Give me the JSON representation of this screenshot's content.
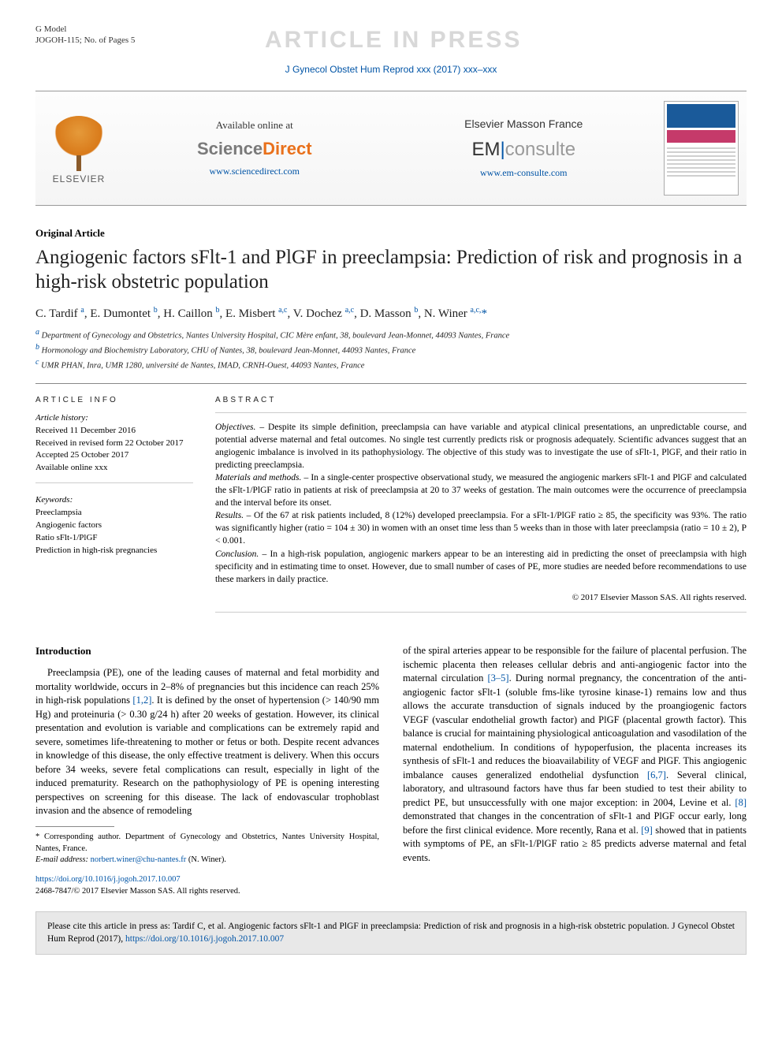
{
  "header": {
    "gmodel": "G Model",
    "gmodel_id": "JOGOH-115; No. of Pages 5",
    "watermark": "ARTICLE IN PRESS",
    "journal_line": "J Gynecol Obstet Hum Reprod xxx (2017) xxx–xxx"
  },
  "panel": {
    "elsevier": "ELSEVIER",
    "sd_avail": "Available online at",
    "sd_sci": "Science",
    "sd_dir": "Direct",
    "sd_url": "www.sciencedirect.com",
    "em_title": "Elsevier Masson France",
    "em_em": "EM",
    "em_con": "consulte",
    "em_url": "www.em-consulte.com"
  },
  "article": {
    "type": "Original Article",
    "title": "Angiogenic factors sFlt-1 and PlGF in preeclampsia: Prediction of risk and prognosis in a high-risk obstetric population",
    "authors_html": "C. Tardif <sup>a</sup>, E. Dumontet <sup>b</sup>, H. Caillon <sup>b</sup>, E. Misbert <sup>a,c</sup>, V. Dochez <sup>a,c</sup>, D. Masson <sup>b</sup>, N. Winer <sup>a,c,</sup><span class='ast'>*</span>",
    "affils": [
      "Department of Gynecology and Obstetrics, Nantes University Hospital, CIC Mère enfant, 38, boulevard Jean-Monnet, 44093 Nantes, France",
      "Hormonology and Biochemistry Laboratory, CHU of Nantes, 38, boulevard Jean-Monnet, 44093 Nantes, France",
      "UMR PHAN, Inra, UMR 1280, université de Nantes, IMAD, CRNH-Ouest, 44093 Nantes, France"
    ],
    "affil_sups": [
      "a",
      "b",
      "c"
    ]
  },
  "info": {
    "head": "ARTICLE INFO",
    "history_label": "Article history:",
    "received": "Received 11 December 2016",
    "revised": "Received in revised form 22 October 2017",
    "accepted": "Accepted 25 October 2017",
    "online": "Available online xxx",
    "kw_label": "Keywords:",
    "keywords": [
      "Preeclampsia",
      "Angiogenic factors",
      "Ratio sFlt-1/PlGF",
      "Prediction in high-risk pregnancies"
    ]
  },
  "abstract": {
    "head": "ABSTRACT",
    "objectives_label": "Objectives. –",
    "objectives": " Despite its simple definition, preeclampsia can have variable and atypical clinical presentations, an unpredictable course, and potential adverse maternal and fetal outcomes. No single test currently predicts risk or prognosis adequately. Scientific advances suggest that an angiogenic imbalance is involved in its pathophysiology. The objective of this study was to investigate the use of sFlt-1, PlGF, and their ratio in predicting preeclampsia.",
    "methods_label": "Materials and methods. –",
    "methods": " In a single-center prospective observational study, we measured the angiogenic markers sFlt-1 and PlGF and calculated the sFlt-1/PlGF ratio in patients at risk of preeclampsia at 20 to 37 weeks of gestation. The main outcomes were the occurrence of preeclampsia and the interval before its onset.",
    "results_label": "Results. –",
    "results": " Of the 67 at risk patients included, 8 (12%) developed preeclampsia. For a sFlt-1/PlGF ratio ≥ 85, the specificity was 93%. The ratio was significantly higher (ratio = 104 ± 30) in women with an onset time less than 5 weeks than in those with later preeclampsia (ratio = 10 ± 2), P < 0.001.",
    "conclusion_label": "Conclusion. –",
    "conclusion": " In a high-risk population, angiogenic markers appear to be an interesting aid in predicting the onset of preeclampsia with high specificity and in estimating time to onset. However, due to small number of cases of PE, more studies are needed before recommendations to use these markers in daily practice.",
    "copyright": "© 2017 Elsevier Masson SAS. All rights reserved."
  },
  "body": {
    "intro_head": "Introduction",
    "col1": "Preeclampsia (PE), one of the leading causes of maternal and fetal morbidity and mortality worldwide, occurs in 2–8% of pregnancies but this incidence can reach 25% in high-risk populations [1,2]. It is defined by the onset of hypertension (> 140/90 mm Hg) and proteinuria (> 0.30 g/24 h) after 20 weeks of gestation. However, its clinical presentation and evolution is variable and complications can be extremely rapid and severe, sometimes life-threatening to mother or fetus or both. Despite recent advances in knowledge of this disease, the only effective treatment is delivery. When this occurs before 34 weeks, severe fetal complications can result, especially in light of the induced prematurity. Research on the pathophysiology of PE is opening interesting perspectives on screening for this disease. The lack of endovascular trophoblast invasion and the absence of remodeling",
    "col1_refs": {
      "r12": "[1,2]"
    },
    "col2": "of the spiral arteries appear to be responsible for the failure of placental perfusion. The ischemic placenta then releases cellular debris and anti-angiogenic factor into the maternal circulation [3–5]. During normal pregnancy, the concentration of the anti-angiogenic factor sFlt-1 (soluble fms-like tyrosine kinase-1) remains low and thus allows the accurate transduction of signals induced by the proangiogenic factors VEGF (vascular endothelial growth factor) and PlGF (placental growth factor). This balance is crucial for maintaining physiological anticoagulation and vasodilation of the maternal endothelium. In conditions of hypoperfusion, the placenta increases its synthesis of sFlt-1 and reduces the bioavailability of VEGF and PlGF. This angiogenic imbalance causes generalized endothelial dysfunction [6,7]. Several clinical, laboratory, and ultrasound factors have thus far been studied to test their ability to predict PE, but unsuccessfully with one major exception: in 2004, Levine et al. [8] demonstrated that changes in the concentration of sFlt-1 and PlGF occur early, long before the first clinical evidence. More recently, Rana et al. [9] showed that in patients with symptoms of PE, an sFlt-1/PlGF ratio ≥ 85 predicts adverse maternal and fetal events."
  },
  "footnotes": {
    "corr": "* Corresponding author. Department of Gynecology and Obstetrics, Nantes University Hospital, Nantes, France.",
    "email_label": "E-mail address:",
    "email": "norbert.winer@chu-nantes.fr",
    "email_tail": " (N. Winer).",
    "doi_url": "https://doi.org/10.1016/j.jogoh.2017.10.007",
    "issn_line": "2468-7847/© 2017 Elsevier Masson SAS. All rights reserved."
  },
  "citebox": {
    "text_pre": "Please cite this article in press as: Tardif C, et al. Angiogenic factors sFlt-1 and PlGF in preeclampsia: Prediction of risk and prognosis in a high-risk obstetric population. J Gynecol Obstet Hum Reprod (2017), ",
    "url": "https://doi.org/10.1016/j.jogoh.2017.10.007"
  },
  "colors": {
    "link": "#0054a6",
    "orange": "#e9711c",
    "grey": "#7a7a7a"
  }
}
